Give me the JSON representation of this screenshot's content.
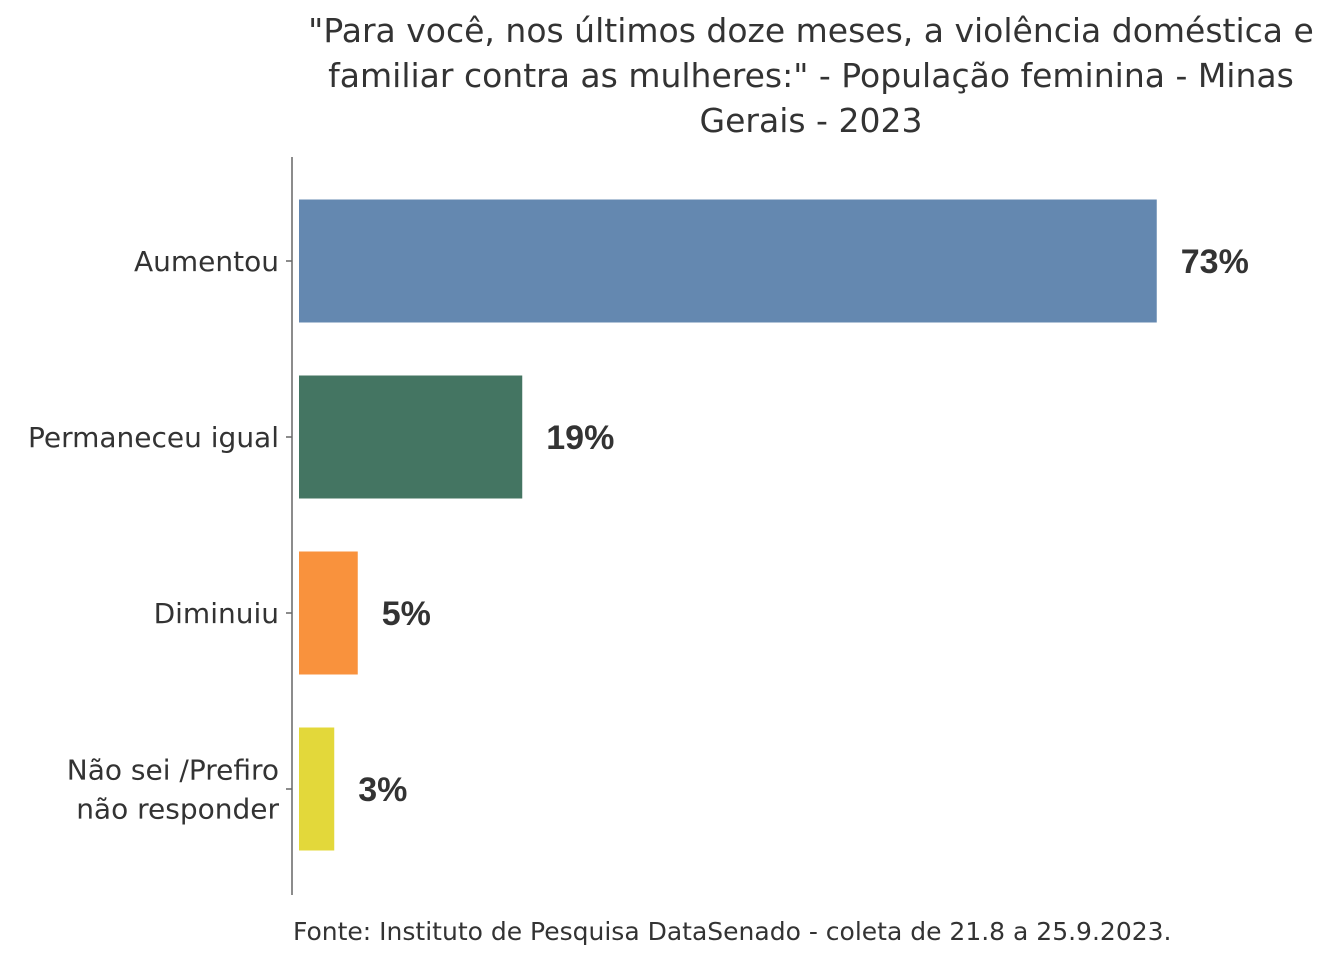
{
  "chart_data": {
    "type": "bar",
    "orientation": "horizontal",
    "title_lines": [
      "\"Para você, nos últimos doze meses, a violência doméstica e",
      "familiar contra as mulheres:\" - População feminina - Minas",
      "Gerais - 2023"
    ],
    "categories": [
      [
        "Aumentou"
      ],
      [
        "Permaneceu igual"
      ],
      [
        "Diminuiu"
      ],
      [
        "Não sei /Prefiro",
        "não responder"
      ]
    ],
    "values": [
      73,
      19,
      5,
      3
    ],
    "value_labels": [
      "73%",
      "19%",
      "5%",
      "3%"
    ],
    "colors": [
      "#6488B0",
      "#447562",
      "#F9923D",
      "#E3D83A"
    ],
    "xlim": [
      0,
      100
    ],
    "grid": false,
    "legend": "none",
    "source": "Fonte: Instituto de Pesquisa DataSenado - coleta de 21.8 a 25.9.2023."
  }
}
